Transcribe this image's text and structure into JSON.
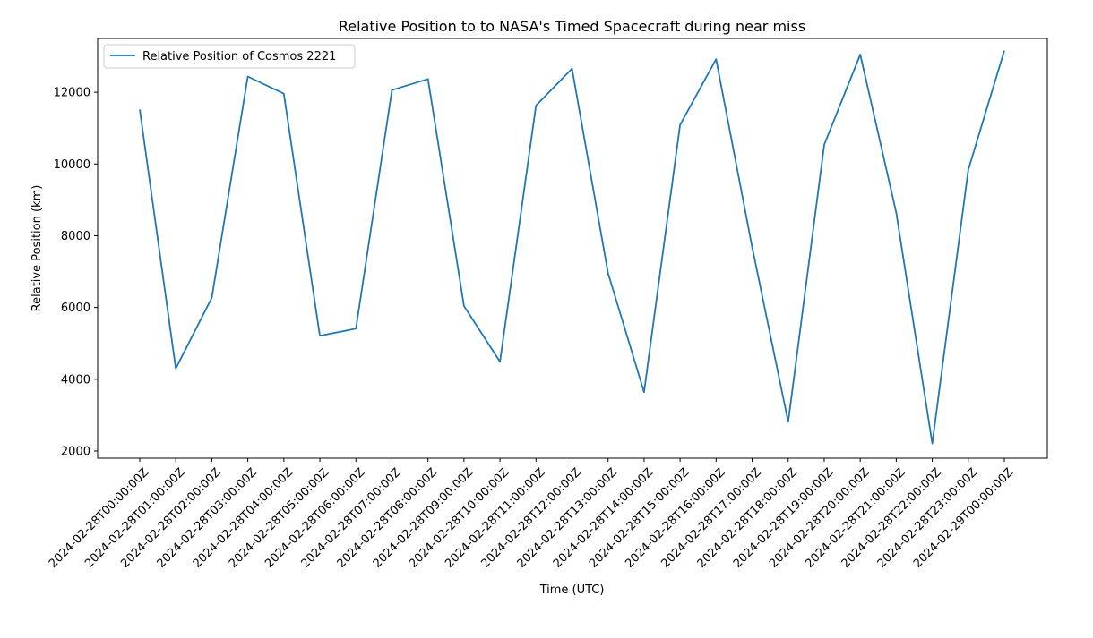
{
  "chart_data": {
    "type": "line",
    "title": "Relative Position to to NASA's Timed Spacecraft during near miss",
    "xlabel": "Time (UTC)",
    "ylabel": "Relative Position (km)",
    "x": [
      "2024-02-28T00:00:00Z",
      "2024-02-28T01:00:00Z",
      "2024-02-28T02:00:00Z",
      "2024-02-28T03:00:00Z",
      "2024-02-28T04:00:00Z",
      "2024-02-28T05:00:00Z",
      "2024-02-28T06:00:00Z",
      "2024-02-28T07:00:00Z",
      "2024-02-28T08:00:00Z",
      "2024-02-28T09:00:00Z",
      "2024-02-28T10:00:00Z",
      "2024-02-28T11:00:00Z",
      "2024-02-28T12:00:00Z",
      "2024-02-28T13:00:00Z",
      "2024-02-28T14:00:00Z",
      "2024-02-28T15:00:00Z",
      "2024-02-28T16:00:00Z",
      "2024-02-28T17:00:00Z",
      "2024-02-28T18:00:00Z",
      "2024-02-28T19:00:00Z",
      "2024-02-28T20:00:00Z",
      "2024-02-28T21:00:00Z",
      "2024-02-28T22:00:00Z",
      "2024-02-28T23:00:00Z",
      "2024-02-29T00:00:00Z"
    ],
    "series": [
      {
        "name": "Relative Position of Cosmos 2221",
        "color": "#1f77b4",
        "values": [
          11520,
          4300,
          6270,
          12440,
          11960,
          5210,
          5410,
          12060,
          12370,
          6040,
          4490,
          11630,
          12660,
          6960,
          3640,
          11090,
          12920,
          7690,
          2810,
          10540,
          13050,
          8640,
          2210,
          9840,
          13160
        ]
      }
    ],
    "yticks": [
      2000,
      4000,
      6000,
      8000,
      10000,
      12000
    ],
    "ylim": [
      1800,
      13500
    ],
    "grid": false,
    "legend": "upper-left"
  }
}
